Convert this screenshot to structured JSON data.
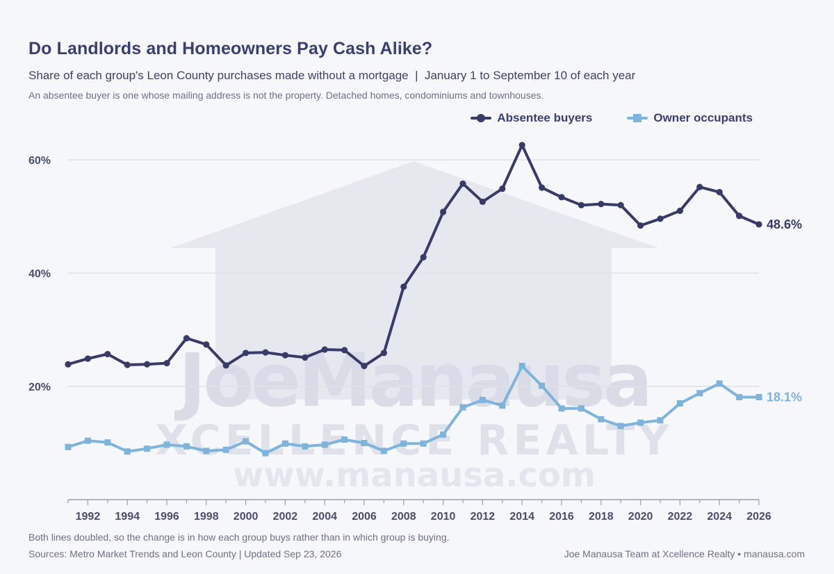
{
  "header": {
    "title": "Do Landlords and Homeowners Pay Cash Alike?",
    "subtitle": "Share of each group's Leon County purchases made without a mortgage  |  January 1 to September 10 of each year",
    "note": "An absentee buyer is one whose mailing address is not the property. Detached homes, condominiums and townhouses."
  },
  "footer": {
    "footnote": "Both lines doubled, so the change is in how each group buys rather than in which group is buying.",
    "sources": "Sources: Metro Market Trends and Leon County  |  Updated Sep 23, 2026",
    "credit": "Joe Manausa Team at Xcellence Realty  •  manausa.com"
  },
  "watermark": {
    "line1": "JoeManausa",
    "line2": "XCELLENCE REALTY",
    "line3": "www.manausa.com"
  },
  "colors": {
    "absentee": "#383b68",
    "owner": "#7eb3dc",
    "grid": "#dfe1e8",
    "axis_text": "#4a4d6e"
  },
  "chart_data": {
    "type": "line",
    "title": "Do Landlords and Homeowners Pay Cash Alike?",
    "xlabel": "",
    "ylabel": "",
    "x": [
      1991,
      1992,
      1993,
      1994,
      1995,
      1996,
      1997,
      1998,
      1999,
      2000,
      2001,
      2002,
      2003,
      2004,
      2005,
      2006,
      2007,
      2008,
      2009,
      2010,
      2011,
      2012,
      2013,
      2014,
      2015,
      2016,
      2017,
      2018,
      2019,
      2020,
      2021,
      2022,
      2023,
      2024,
      2025,
      2026
    ],
    "xticks": [
      "1992",
      "1994",
      "1996",
      "1998",
      "2000",
      "2002",
      "2004",
      "2006",
      "2008",
      "2010",
      "2012",
      "2014",
      "2016",
      "2018",
      "2020",
      "2022",
      "2024",
      "2026"
    ],
    "ylim": [
      0,
      62
    ],
    "yticks": [
      "20%",
      "40%",
      "60%"
    ],
    "grid": true,
    "legend": "top-right",
    "series": [
      {
        "name": "Absentee buyers",
        "end_label": "48.6%",
        "values": [
          23.9,
          24.9,
          25.7,
          23.8,
          23.9,
          24.1,
          28.5,
          27.4,
          23.7,
          25.9,
          26.0,
          25.5,
          25.1,
          26.5,
          26.4,
          23.6,
          25.9,
          37.6,
          42.8,
          50.8,
          55.8,
          52.6,
          54.9,
          62.6,
          55.1,
          53.4,
          52.0,
          52.2,
          52.0,
          48.4,
          49.6,
          51.0,
          55.2,
          54.3,
          50.1,
          48.6
        ]
      },
      {
        "name": "Owner occupants",
        "end_label": "18.1%",
        "values": [
          9.3,
          10.4,
          10.1,
          8.5,
          9.0,
          9.7,
          9.4,
          8.6,
          8.8,
          10.3,
          8.2,
          9.9,
          9.4,
          9.7,
          10.6,
          10.0,
          8.6,
          9.9,
          9.9,
          11.5,
          16.3,
          17.6,
          16.6,
          23.6,
          20.1,
          16.1,
          16.1,
          14.2,
          13.0,
          13.6,
          14.0,
          17.0,
          18.8,
          20.5,
          18.1,
          18.1
        ]
      }
    ]
  }
}
